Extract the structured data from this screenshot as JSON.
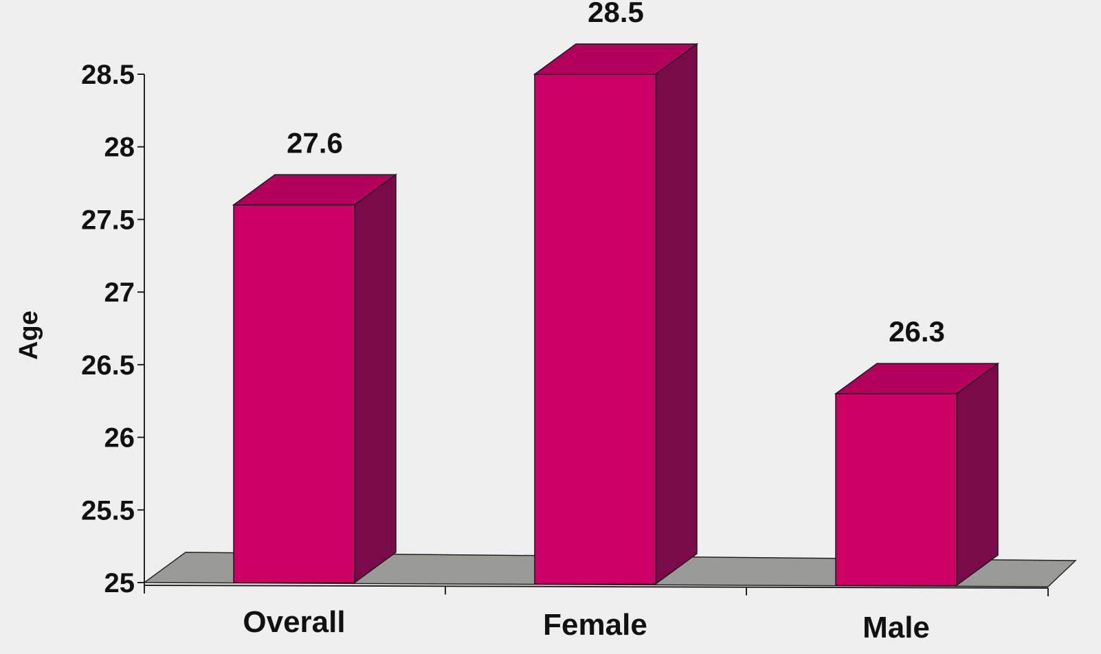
{
  "chart_data": {
    "type": "bar",
    "three_d": true,
    "categories": [
      "Overall",
      "Female",
      "Male"
    ],
    "values": [
      27.6,
      28.5,
      26.3
    ],
    "data_labels": [
      "27.6",
      "28.5",
      "26.3"
    ],
    "title": "",
    "xlabel": "",
    "ylabel": "Age",
    "ylim": [
      25,
      28.5
    ],
    "yticks": [
      25,
      25.5,
      26,
      26.5,
      27,
      27.5,
      28,
      28.5
    ],
    "ytick_labels": [
      "25",
      "25.5",
      "26",
      "26.5",
      "27",
      "27.5",
      "28",
      "28.5"
    ],
    "grid": false,
    "legend": "none",
    "colors": {
      "bar_front": "#cc0066",
      "bar_top": "#b3005c",
      "bar_side": "#7a0a4a",
      "floor": "#9a9a96",
      "background": "#efefef",
      "text": "#111111"
    }
  }
}
